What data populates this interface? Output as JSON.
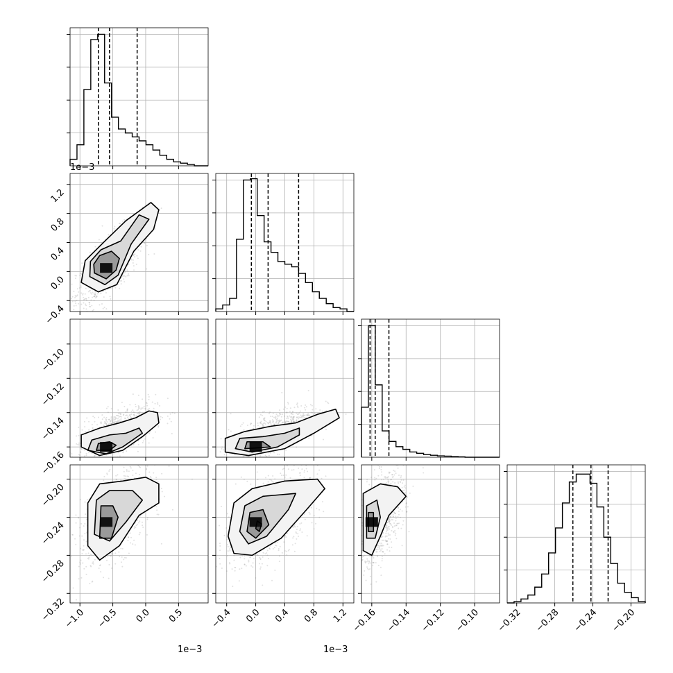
{
  "chart_data": {
    "type": "corner",
    "grid": true,
    "offset_text": "1e−3",
    "variables": [
      {
        "range": [
          -1.15,
          0.95
        ],
        "ticks": [
          -1.0,
          -0.5,
          0.0,
          0.5
        ],
        "tick_labels": [
          "−1.0",
          "−0.5",
          "0.0",
          "0.5"
        ],
        "offset_text": "1e−3"
      },
      {
        "range": [
          -0.55,
          1.35
        ],
        "ticks": [
          -0.4,
          0.0,
          0.4,
          0.8,
          1.2
        ],
        "tick_labels": [
          "−0.4",
          "0.0",
          "0.4",
          "0.8",
          "1.2"
        ],
        "offset_text": "1e−3"
      },
      {
        "range": [
          -0.166,
          -0.0855
        ],
        "ticks": [
          -0.16,
          -0.14,
          -0.12,
          -0.1
        ],
        "tick_labels": [
          "−0.16",
          "−0.14",
          "−0.12",
          "−0.10"
        ],
        "offset_text": ""
      },
      {
        "range": [
          -0.33,
          -0.185
        ],
        "ticks": [
          -0.32,
          -0.28,
          -0.24,
          -0.2
        ],
        "tick_labels": [
          "−0.32",
          "−0.28",
          "−0.24",
          "−0.20"
        ],
        "offset_text": ""
      }
    ],
    "histograms": [
      {
        "edges_range": [
          -1.15,
          0.95
        ],
        "bins": 20,
        "counts": [
          0.05,
          0.16,
          0.58,
          0.96,
          1.0,
          0.63,
          0.37,
          0.28,
          0.25,
          0.22,
          0.19,
          0.16,
          0.12,
          0.08,
          0.05,
          0.03,
          0.02,
          0.01,
          0.0,
          0.0
        ],
        "quantiles": [
          -0.72,
          -0.55,
          -0.13
        ]
      },
      {
        "edges_range": [
          -0.55,
          1.35
        ],
        "bins": 20,
        "counts": [
          0.02,
          0.05,
          0.1,
          0.55,
          1.0,
          1.01,
          0.73,
          0.53,
          0.45,
          0.38,
          0.36,
          0.34,
          0.29,
          0.22,
          0.15,
          0.1,
          0.06,
          0.03,
          0.02,
          0.0
        ],
        "quantiles": [
          -0.06,
          0.17,
          0.59
        ]
      },
      {
        "edges_range": [
          -0.166,
          -0.0855
        ],
        "bins": 20,
        "counts": [
          0.38,
          1.0,
          0.55,
          0.2,
          0.12,
          0.08,
          0.06,
          0.04,
          0.03,
          0.02,
          0.015,
          0.01,
          0.008,
          0.005,
          0.003,
          0.0,
          0.0,
          0.0,
          0.0,
          0.0
        ],
        "quantiles": [
          -0.161,
          -0.158,
          -0.15
        ]
      },
      {
        "edges_range": [
          -0.33,
          -0.185
        ],
        "bins": 20,
        "counts": [
          0.0,
          0.01,
          0.03,
          0.06,
          0.12,
          0.22,
          0.38,
          0.57,
          0.76,
          0.92,
          0.98,
          0.98,
          0.91,
          0.73,
          0.5,
          0.3,
          0.15,
          0.08,
          0.04,
          0.01
        ],
        "quantiles": [
          -0.261,
          -0.242,
          -0.224
        ]
      }
    ],
    "pairs": [
      {
        "row": 1,
        "col": 0,
        "mean": [
          -0.55,
          0.08
        ],
        "std": [
          0.25,
          0.28
        ],
        "rho": 0.72,
        "density_peak": [
          -0.6,
          0.05
        ],
        "contours": [
          [
            [
              -0.98,
              -0.15
            ],
            [
              -0.72,
              -0.28
            ],
            [
              -0.44,
              -0.18
            ],
            [
              -0.18,
              0.28
            ],
            [
              0.12,
              0.58
            ],
            [
              0.2,
              0.85
            ],
            [
              0.08,
              0.95
            ],
            [
              -0.3,
              0.7
            ],
            [
              -0.62,
              0.42
            ],
            [
              -0.92,
              0.15
            ]
          ],
          [
            [
              -0.85,
              -0.07
            ],
            [
              -0.62,
              -0.18
            ],
            [
              -0.42,
              -0.05
            ],
            [
              -0.22,
              0.38
            ],
            [
              0.05,
              0.72
            ],
            [
              -0.1,
              0.78
            ],
            [
              -0.38,
              0.42
            ],
            [
              -0.68,
              0.3
            ],
            [
              -0.84,
              0.14
            ]
          ],
          [
            [
              -0.78,
              -0.02
            ],
            [
              -0.6,
              -0.1
            ],
            [
              -0.45,
              0.02
            ],
            [
              -0.4,
              0.18
            ],
            [
              -0.52,
              0.28
            ],
            [
              -0.7,
              0.22
            ],
            [
              -0.79,
              0.1
            ]
          ]
        ]
      },
      {
        "row": 2,
        "col": 0,
        "mean": [
          -0.45,
          -0.152
        ],
        "std": [
          0.3,
          0.008
        ],
        "rho": 0.6,
        "density_peak": [
          -0.6,
          -0.16
        ],
        "contours": [
          [
            [
              -0.98,
              -0.16
            ],
            [
              -0.98,
              -0.153
            ],
            [
              -0.7,
              -0.149
            ],
            [
              -0.4,
              -0.146
            ],
            [
              -0.15,
              -0.143
            ],
            [
              0.05,
              -0.139
            ],
            [
              0.18,
              -0.14
            ],
            [
              0.2,
              -0.146
            ],
            [
              -0.05,
              -0.154
            ],
            [
              -0.35,
              -0.162
            ],
            [
              -0.7,
              -0.165
            ]
          ],
          [
            [
              -0.88,
              -0.162
            ],
            [
              -0.82,
              -0.156
            ],
            [
              -0.55,
              -0.153
            ],
            [
              -0.3,
              -0.152
            ],
            [
              -0.1,
              -0.149
            ],
            [
              -0.05,
              -0.152
            ],
            [
              -0.35,
              -0.16
            ],
            [
              -0.6,
              -0.164
            ]
          ],
          [
            [
              -0.75,
              -0.162
            ],
            [
              -0.72,
              -0.158
            ],
            [
              -0.55,
              -0.157
            ],
            [
              -0.45,
              -0.159
            ],
            [
              -0.55,
              -0.162
            ]
          ]
        ]
      },
      {
        "row": 2,
        "col": 1,
        "mean": [
          0.25,
          -0.152
        ],
        "std": [
          0.3,
          0.008
        ],
        "rho": 0.65,
        "density_peak": [
          0.0,
          -0.16
        ],
        "contours": [
          [
            [
              -0.42,
              -0.163
            ],
            [
              -0.42,
              -0.155
            ],
            [
              -0.15,
              -0.151
            ],
            [
              0.2,
              -0.148
            ],
            [
              0.55,
              -0.146
            ],
            [
              0.85,
              -0.141
            ],
            [
              1.1,
              -0.138
            ],
            [
              1.15,
              -0.143
            ],
            [
              0.8,
              -0.152
            ],
            [
              0.4,
              -0.161
            ],
            [
              -0.1,
              -0.165
            ]
          ],
          [
            [
              -0.28,
              -0.161
            ],
            [
              -0.22,
              -0.155
            ],
            [
              0.1,
              -0.154
            ],
            [
              0.4,
              -0.152
            ],
            [
              0.6,
              -0.149
            ],
            [
              0.6,
              -0.153
            ],
            [
              0.3,
              -0.16
            ],
            [
              -0.05,
              -0.163
            ]
          ],
          [
            [
              -0.15,
              -0.161
            ],
            [
              -0.12,
              -0.157
            ],
            [
              0.1,
              -0.157
            ],
            [
              0.2,
              -0.16
            ]
          ]
        ]
      },
      {
        "row": 3,
        "col": 0,
        "mean": [
          -0.45,
          -0.24
        ],
        "std": [
          0.27,
          0.025
        ],
        "rho": 0.55,
        "density_peak": [
          -0.6,
          -0.245
        ],
        "contours": [
          [
            [
              -0.88,
              -0.27
            ],
            [
              -0.88,
              -0.225
            ],
            [
              -0.7,
              -0.205
            ],
            [
              -0.35,
              -0.202
            ],
            [
              0.0,
              -0.198
            ],
            [
              0.2,
              -0.205
            ],
            [
              0.2,
              -0.225
            ],
            [
              -0.1,
              -0.238
            ],
            [
              -0.4,
              -0.27
            ],
            [
              -0.7,
              -0.285
            ]
          ],
          [
            [
              -0.78,
              -0.258
            ],
            [
              -0.75,
              -0.222
            ],
            [
              -0.55,
              -0.212
            ],
            [
              -0.2,
              -0.212
            ],
            [
              -0.05,
              -0.222
            ],
            [
              -0.3,
              -0.245
            ],
            [
              -0.55,
              -0.265
            ]
          ],
          [
            [
              -0.7,
              -0.262
            ],
            [
              -0.68,
              -0.228
            ],
            [
              -0.5,
              -0.228
            ],
            [
              -0.42,
              -0.24
            ],
            [
              -0.52,
              -0.262
            ]
          ]
        ]
      },
      {
        "row": 3,
        "col": 1,
        "mean": [
          0.2,
          -0.24
        ],
        "std": [
          0.32,
          0.025
        ],
        "rho": 0.6,
        "density_peak": [
          0.0,
          -0.245
        ],
        "contours": [
          [
            [
              -0.38,
              -0.26
            ],
            [
              -0.3,
              -0.225
            ],
            [
              -0.05,
              -0.21
            ],
            [
              0.4,
              -0.202
            ],
            [
              0.85,
              -0.2
            ],
            [
              0.95,
              -0.21
            ],
            [
              0.7,
              -0.232
            ],
            [
              0.35,
              -0.262
            ],
            [
              -0.05,
              -0.28
            ],
            [
              -0.3,
              -0.278
            ]
          ],
          [
            [
              -0.22,
              -0.255
            ],
            [
              -0.15,
              -0.228
            ],
            [
              0.1,
              -0.218
            ],
            [
              0.55,
              -0.215
            ],
            [
              0.45,
              -0.232
            ],
            [
              0.15,
              -0.26
            ],
            [
              -0.1,
              -0.268
            ]
          ],
          [
            [
              -0.12,
              -0.255
            ],
            [
              -0.08,
              -0.235
            ],
            [
              0.1,
              -0.232
            ],
            [
              0.18,
              -0.248
            ],
            [
              0.0,
              -0.262
            ]
          ],
          [
            [
              0.0,
              -0.252
            ],
            [
              0.02,
              -0.244
            ],
            [
              0.08,
              -0.247
            ],
            [
              0.05,
              -0.255
            ]
          ]
        ]
      },
      {
        "row": 3,
        "col": 2,
        "mean": [
          -0.155,
          -0.24
        ],
        "std": [
          0.007,
          0.025
        ],
        "rho": 0.5,
        "density_peak": [
          -0.16,
          -0.245
        ],
        "contours": [
          [
            [
              -0.165,
              -0.275
            ],
            [
              -0.165,
              -0.215
            ],
            [
              -0.155,
              -0.205
            ],
            [
              -0.145,
              -0.208
            ],
            [
              -0.14,
              -0.218
            ],
            [
              -0.15,
              -0.238
            ],
            [
              -0.155,
              -0.26
            ],
            [
              -0.16,
              -0.28
            ]
          ],
          [
            [
              -0.163,
              -0.262
            ],
            [
              -0.163,
              -0.228
            ],
            [
              -0.157,
              -0.222
            ],
            [
              -0.155,
              -0.24
            ],
            [
              -0.158,
              -0.262
            ]
          ],
          [
            [
              -0.162,
              -0.255
            ],
            [
              -0.162,
              -0.235
            ],
            [
              -0.159,
              -0.235
            ],
            [
              -0.159,
              -0.255
            ]
          ]
        ]
      }
    ]
  }
}
